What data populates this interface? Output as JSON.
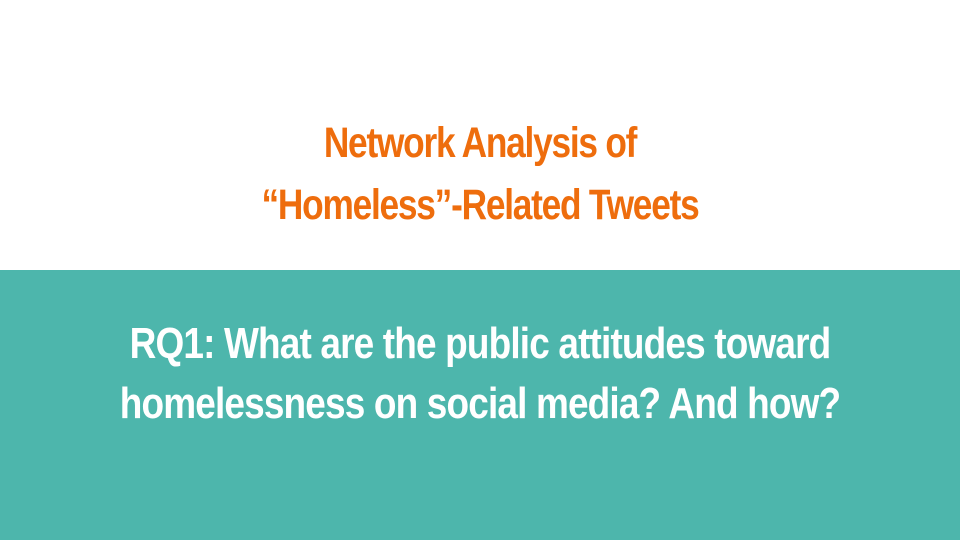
{
  "slide": {
    "title_lines": [
      "Network Analysis of",
      "“Homeless”-Related Tweets"
    ],
    "subtitle_lines": [
      "RQ1: What are the public attitudes toward",
      "homelessness on social media? And how?"
    ]
  },
  "colors": {
    "title": "#ee6d0d",
    "band_background": "#4db6ac",
    "subtitle": "#ffffff",
    "top_background": "#ffffff"
  }
}
